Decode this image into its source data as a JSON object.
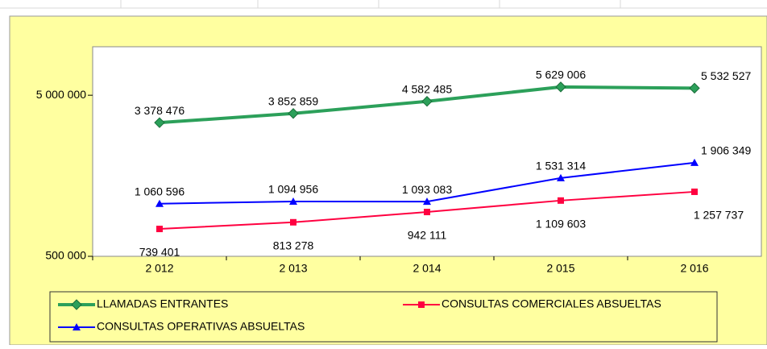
{
  "chart_data": {
    "type": "line",
    "categories": [
      "2 012",
      "2 013",
      "2 014",
      "2 015",
      "2 016"
    ],
    "log_scale": true,
    "ylim": [
      500000,
      10000000
    ],
    "yticks": [
      {
        "value": 500000,
        "label": "500 000"
      },
      {
        "value": 5000000,
        "label": "5 000 000"
      }
    ],
    "legend": "bottom",
    "series": [
      {
        "name": "LLAMADAS ENTRANTES",
        "color": "#2ca05a",
        "marker": "diamond",
        "values": [
          3378476,
          3852859,
          4582485,
          5629006,
          5532527
        ],
        "value_labels": [
          "3 378 476",
          "3 852 859",
          "4 582 485",
          "5 629 006",
          "5 532 527"
        ]
      },
      {
        "name": "CONSULTAS COMERCIALES ABSUELTAS",
        "color": "#ff0040",
        "marker": "square",
        "values": [
          739401,
          813278,
          942111,
          1109603,
          1257737
        ],
        "value_labels": [
          "739 401",
          "813 278",
          "942 111",
          "1 109 603",
          "1 257 737"
        ]
      },
      {
        "name": "CONSULTAS OPERATIVAS ABSUELTAS",
        "color": "#0000ff",
        "marker": "triangle",
        "values": [
          1060596,
          1094956,
          1093083,
          1531314,
          1906349
        ],
        "value_labels": [
          "1 060 596",
          "1 094 956",
          "1 093 083",
          "1 531 314",
          "1 906 349"
        ]
      }
    ]
  }
}
